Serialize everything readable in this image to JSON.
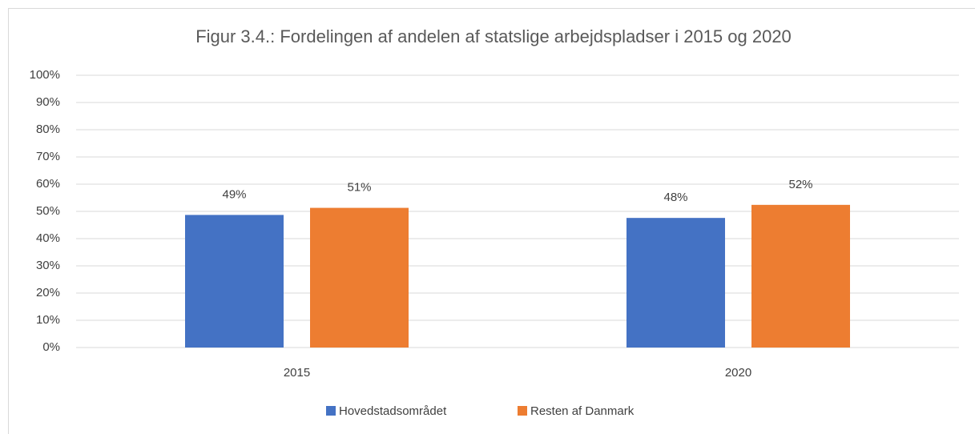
{
  "chart_data": {
    "type": "bar",
    "title": "Figur 3.4.: Fordelingen af andelen af statslige arbejdspladser i 2015 og 2020",
    "categories": [
      "2015",
      "2020"
    ],
    "series": [
      {
        "name": "Hovedstadsområdet",
        "color": "#4472c4",
        "values": [
          48.7,
          47.6
        ],
        "value_labels": [
          "49%",
          "48%"
        ]
      },
      {
        "name": "Resten af Danmark",
        "color": "#ed7d31",
        "values": [
          51.3,
          52.4
        ],
        "value_labels": [
          "51%",
          "52%"
        ]
      }
    ],
    "ylim": [
      0,
      100
    ],
    "yticks": [
      {
        "value": 0,
        "label": "0%"
      },
      {
        "value": 10,
        "label": "10%"
      },
      {
        "value": 20,
        "label": "20%"
      },
      {
        "value": 30,
        "label": "30%"
      },
      {
        "value": 40,
        "label": "40%"
      },
      {
        "value": 50,
        "label": "50%"
      },
      {
        "value": 60,
        "label": "60%"
      },
      {
        "value": 70,
        "label": "70%"
      },
      {
        "value": 80,
        "label": "80%"
      },
      {
        "value": 90,
        "label": "90%"
      },
      {
        "value": 100,
        "label": "100%"
      }
    ],
    "grid": true,
    "legend": "bottom"
  }
}
